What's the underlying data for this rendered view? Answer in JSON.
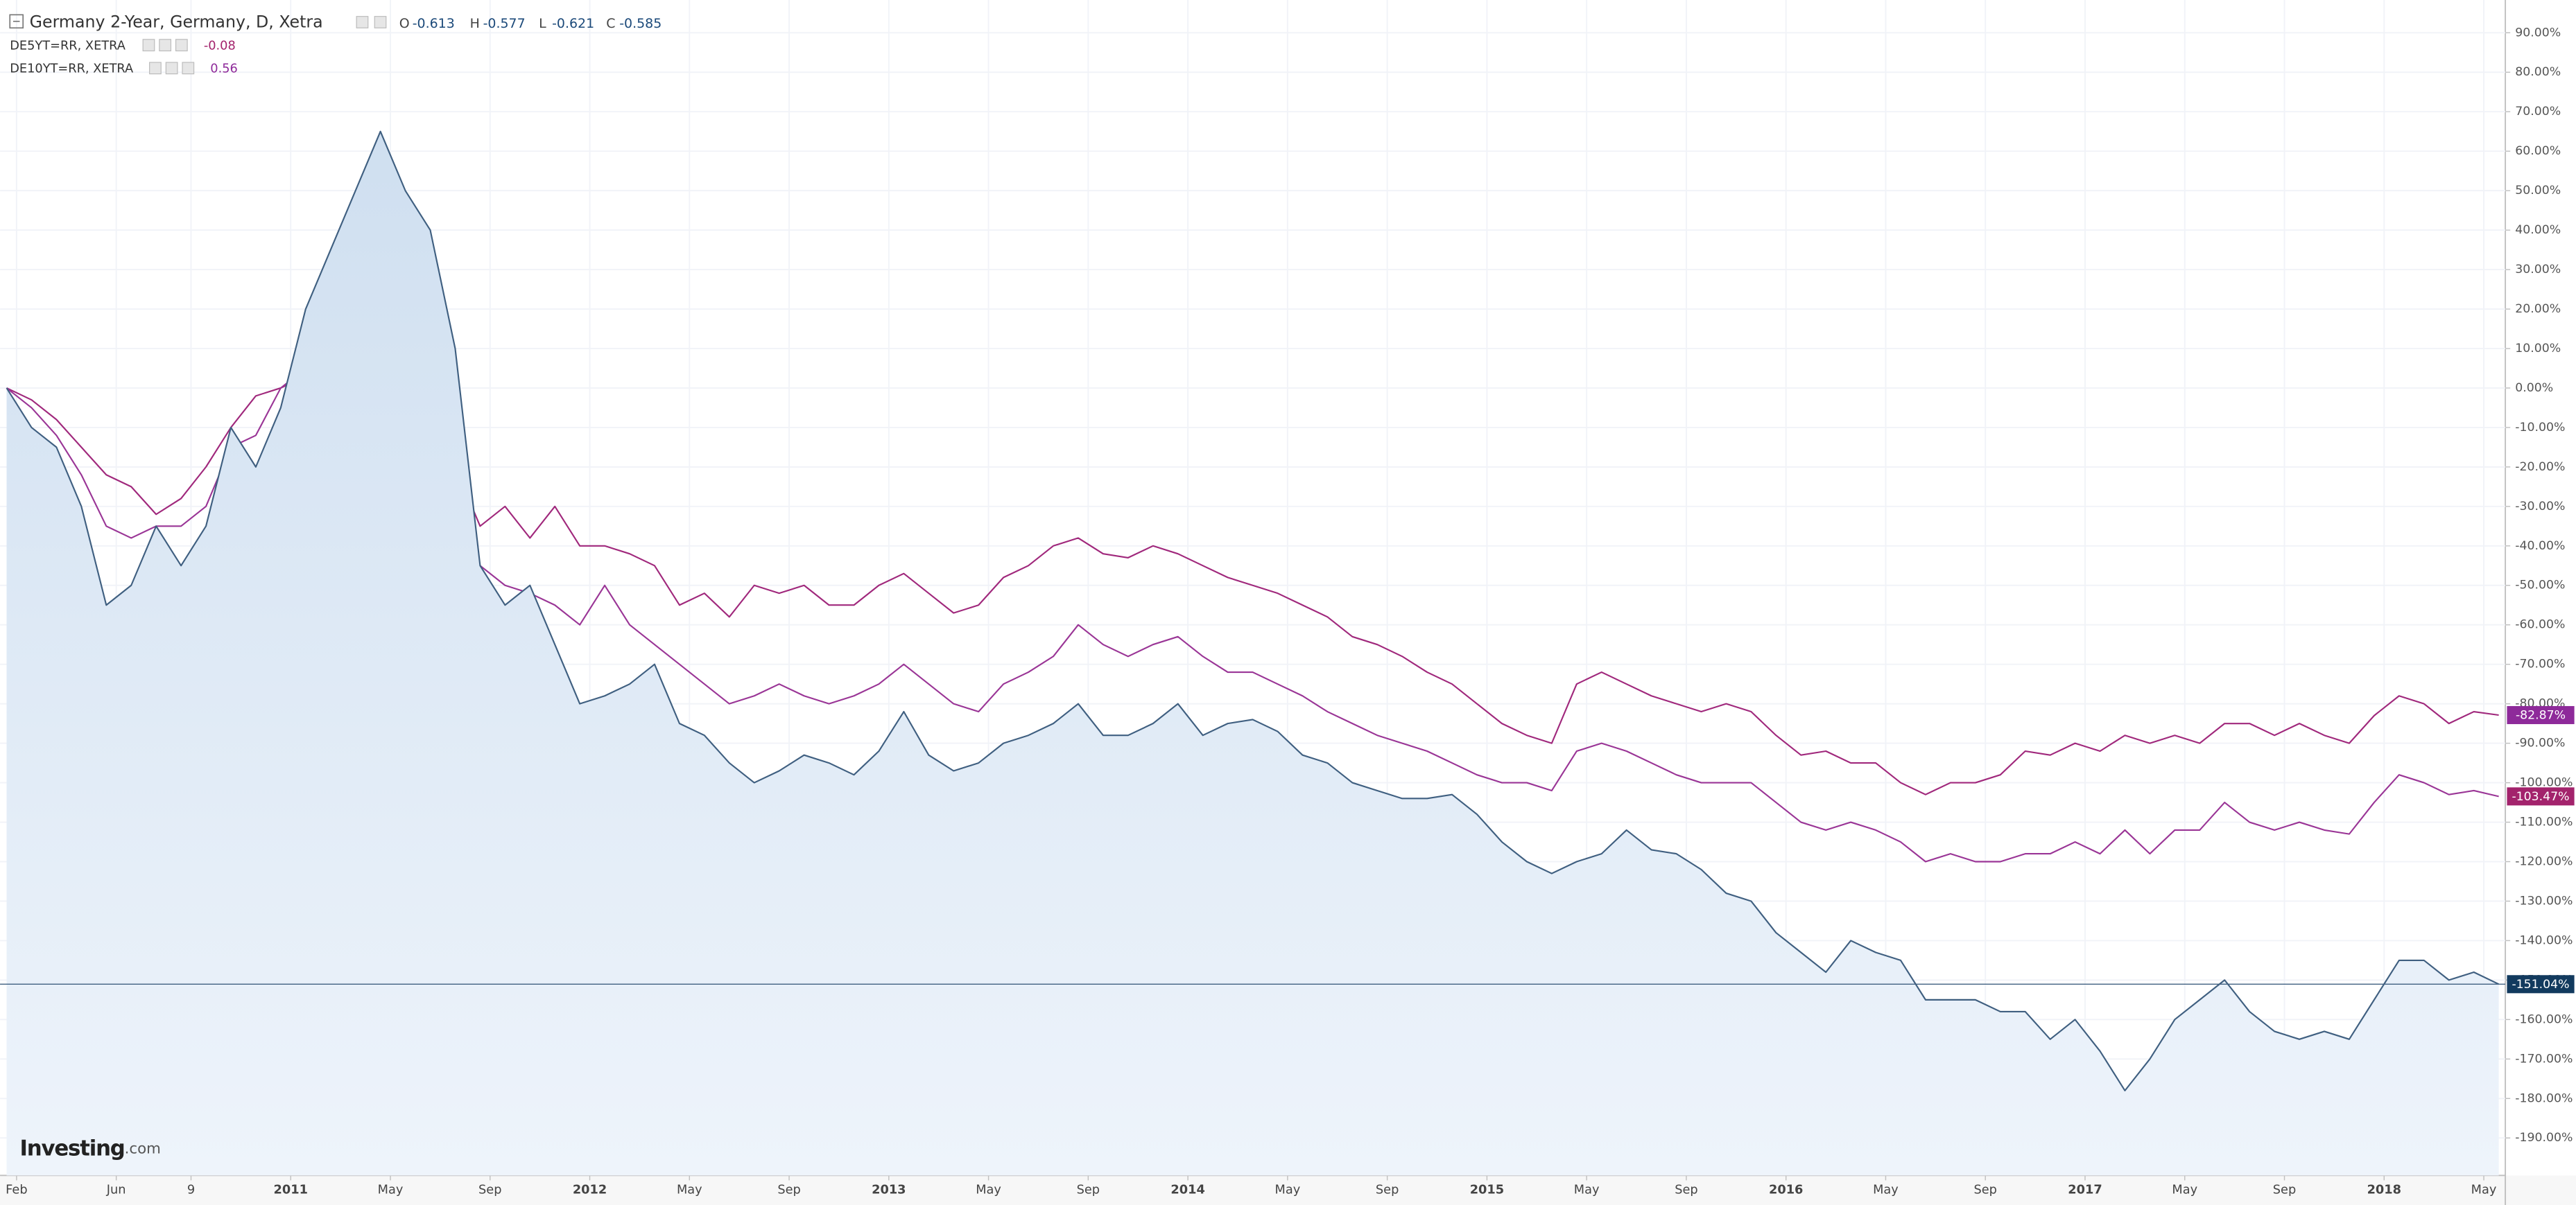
{
  "chart_data": {
    "type": "line",
    "categories": [
      "Feb",
      null,
      null,
      null,
      "Jun",
      null,
      null,
      "9",
      null,
      null,
      null,
      "2011",
      null,
      null,
      null,
      "May",
      null,
      null,
      null,
      "Sep",
      null,
      null,
      null,
      "2012",
      null,
      null,
      null,
      "May",
      null,
      null,
      null,
      "Sep",
      null,
      null,
      null,
      "2013",
      null,
      null,
      null,
      "May",
      null,
      null,
      null,
      "Sep",
      null,
      null,
      null,
      "2014",
      null,
      null,
      null,
      "May",
      null,
      null,
      null,
      "Sep",
      null,
      null,
      null,
      "2015",
      null,
      null,
      null,
      "May",
      null,
      null,
      null,
      "Sep",
      null,
      null,
      null,
      "2016",
      null,
      null,
      null,
      "May",
      null,
      null,
      null,
      "Sep",
      null,
      null,
      null,
      "2017",
      null,
      null,
      null,
      "May",
      null,
      null,
      null,
      "Sep",
      null,
      null,
      null,
      "2018",
      null,
      null,
      null,
      "May",
      null
    ],
    "series": [
      {
        "name": "Germany 2-Year, Germany, D, Xetra",
        "color": "#3f5f80",
        "area": true,
        "ohlc": [
          {
            "label": "O",
            "value": -0.613
          },
          {
            "label": "H",
            "value": -0.577
          },
          {
            "label": "L",
            "value": -0.621
          },
          {
            "label": "C",
            "value": -0.585
          }
        ],
        "end_label": {
          "value": -151.04,
          "label": "-151.04%"
        },
        "values": [
          0,
          -10,
          -15,
          -30,
          -55,
          -50,
          -35,
          -45,
          -35,
          -10,
          -20,
          -5,
          20,
          35,
          50,
          65,
          50,
          40,
          10,
          -45,
          -55,
          -50,
          -65,
          -80,
          -78,
          -75,
          -70,
          -85,
          -88,
          -95,
          -100,
          -97,
          -93,
          -95,
          -98,
          -92,
          -82,
          -93,
          -97,
          -95,
          -90,
          -88,
          -85,
          -80,
          -88,
          -88,
          -85,
          -80,
          -88,
          -85,
          -84,
          -87,
          -93,
          -95,
          -100,
          -102,
          -104,
          -104,
          -103,
          -108,
          -115,
          -120,
          -123,
          -120,
          -118,
          -112,
          -117,
          -118,
          -122,
          -128,
          -130,
          -138,
          -143,
          -148,
          -140,
          -143,
          -145,
          -155,
          -155,
          -155,
          -158,
          -158,
          -165,
          -160,
          -168,
          -178,
          -170,
          -160,
          -155,
          -150,
          -158,
          -163,
          -165,
          -163,
          -165,
          -155,
          -145,
          -145,
          -150,
          -148,
          -151.04
        ]
      },
      {
        "name": "DE5YT=RR, XETRA",
        "color": "#9a3596",
        "last": -0.08,
        "last_color": "#a3236c",
        "end_label": {
          "value": -103.47,
          "label": "-103.47%"
        },
        "values": [
          0,
          -5,
          -12,
          -22,
          -35,
          -38,
          -35,
          -35,
          -30,
          -15,
          -12,
          0,
          5,
          10,
          15,
          12,
          5,
          0,
          -15,
          -45,
          -50,
          -52,
          -55,
          -60,
          -50,
          -60,
          -65,
          -70,
          -75,
          -80,
          -78,
          -75,
          -78,
          -80,
          -78,
          -75,
          -70,
          -75,
          -80,
          -82,
          -75,
          -72,
          -68,
          -60,
          -65,
          -68,
          -65,
          -63,
          -68,
          -72,
          -72,
          -75,
          -78,
          -82,
          -85,
          -88,
          -90,
          -92,
          -95,
          -98,
          -100,
          -100,
          -102,
          -92,
          -90,
          -92,
          -95,
          -98,
          -100,
          -100,
          -100,
          -105,
          -110,
          -112,
          -110,
          -112,
          -115,
          -120,
          -118,
          -120,
          -120,
          -118,
          -118,
          -115,
          -118,
          -112,
          -118,
          -112,
          -112,
          -105,
          -110,
          -112,
          -110,
          -112,
          -113,
          -105,
          -98,
          -100,
          -103,
          -102,
          -103.47
        ]
      },
      {
        "name": "DE10YT=RR, XETRA",
        "color": "#a0287c",
        "last": 0.56,
        "last_color": "#8e2a9a",
        "end_label": {
          "value": -82.87,
          "label": "-82.87%"
        },
        "values": [
          0,
          -3,
          -8,
          -15,
          -22,
          -25,
          -32,
          -28,
          -20,
          -10,
          -2,
          0,
          3,
          5,
          5,
          0,
          -5,
          -10,
          -20,
          -35,
          -30,
          -38,
          -30,
          -40,
          -40,
          -42,
          -45,
          -55,
          -52,
          -58,
          -50,
          -52,
          -50,
          -55,
          -55,
          -50,
          -47,
          -52,
          -57,
          -55,
          -48,
          -45,
          -40,
          -38,
          -42,
          -43,
          -40,
          -42,
          -45,
          -48,
          -50,
          -52,
          -55,
          -58,
          -63,
          -65,
          -68,
          -72,
          -75,
          -80,
          -85,
          -88,
          -90,
          -75,
          -72,
          -75,
          -78,
          -80,
          -82,
          -80,
          -82,
          -88,
          -93,
          -92,
          -95,
          -95,
          -100,
          -103,
          -100,
          -100,
          -98,
          -92,
          -93,
          -90,
          -92,
          -88,
          -90,
          -88,
          -90,
          -85,
          -85,
          -88,
          -85,
          -88,
          -90,
          -83,
          -78,
          -80,
          -85,
          -82,
          -82.87
        ]
      }
    ],
    "ylim": [
      -199.5,
      98.3
    ],
    "yticks": [
      {
        "value": 90,
        "label": "90.00%"
      },
      {
        "value": 80,
        "label": "80.00%"
      },
      {
        "value": 70,
        "label": "70.00%"
      },
      {
        "value": 60,
        "label": "60.00%"
      },
      {
        "value": 50,
        "label": "50.00%"
      },
      {
        "value": 40,
        "label": "40.00%"
      },
      {
        "value": 30,
        "label": "30.00%"
      },
      {
        "value": 20,
        "label": "20.00%"
      },
      {
        "value": 10,
        "label": "10.00%"
      },
      {
        "value": 0,
        "label": "0.00%"
      },
      {
        "value": -10,
        "label": "-10.00%"
      },
      {
        "value": -20,
        "label": "-20.00%"
      },
      {
        "value": -30,
        "label": "-30.00%"
      },
      {
        "value": -40,
        "label": "-40.00%"
      },
      {
        "value": -50,
        "label": "-50.00%"
      },
      {
        "value": -60,
        "label": "-60.00%"
      },
      {
        "value": -70,
        "label": "-70.00%"
      },
      {
        "value": -80,
        "label": "-80.00%"
      },
      {
        "value": -90,
        "label": "-90.00%"
      },
      {
        "value": -100,
        "label": "-100.00%"
      },
      {
        "value": -110,
        "label": "-110.00%"
      },
      {
        "value": -120,
        "label": "-120.00%"
      },
      {
        "value": -130,
        "label": "-130.00%"
      },
      {
        "value": -140,
        "label": "-140.00%"
      },
      {
        "value": -150,
        "label": "-150.00%"
      },
      {
        "value": -160,
        "label": "-160.00%"
      },
      {
        "value": -170,
        "label": "-170.00%"
      },
      {
        "value": -180,
        "label": "-180.00%"
      },
      {
        "value": -190,
        "label": "-190.00%"
      }
    ],
    "grid": true,
    "watermark": [
      "Investing",
      ".com"
    ]
  }
}
